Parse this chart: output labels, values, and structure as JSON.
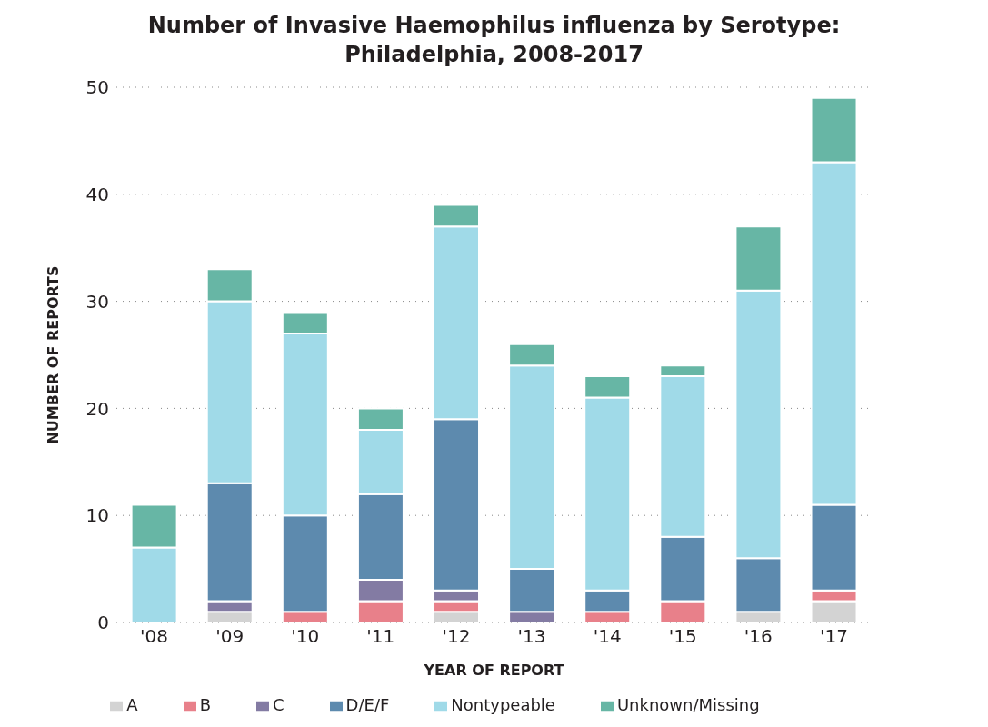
{
  "chart_data": {
    "type": "bar",
    "title": "Number of Invasive Haemophilus influenza by Serotype: Philadelphia, 2008-2017",
    "xlabel": "YEAR OF REPORT",
    "ylabel": "NUMBER OF REPORTS",
    "categories": [
      "'08",
      "'09",
      "'10",
      "'11",
      "'12",
      "'13",
      "'14",
      "'15",
      "'16",
      "'17"
    ],
    "series": [
      {
        "name": "A",
        "color": "#d3d3d3",
        "values": [
          0,
          1,
          0,
          0,
          1,
          0,
          0,
          0,
          1,
          2
        ]
      },
      {
        "name": "B",
        "color": "#e8808a",
        "values": [
          0,
          0,
          1,
          2,
          1,
          0,
          1,
          2,
          0,
          1
        ]
      },
      {
        "name": "C",
        "color": "#837ba3",
        "values": [
          0,
          1,
          0,
          2,
          1,
          1,
          0,
          0,
          0,
          0
        ]
      },
      {
        "name": "D/E/F",
        "color": "#5d8aae",
        "values": [
          0,
          11,
          9,
          8,
          16,
          4,
          2,
          6,
          5,
          8
        ]
      },
      {
        "name": "Nontypeable",
        "color": "#a0dae8",
        "values": [
          7,
          17,
          17,
          6,
          18,
          19,
          18,
          15,
          25,
          32
        ]
      },
      {
        "name": "Unknown/Missing",
        "color": "#67b6a5",
        "values": [
          4,
          3,
          2,
          2,
          2,
          2,
          2,
          1,
          6,
          6
        ]
      }
    ],
    "stacked": true,
    "ylim": [
      0,
      50
    ],
    "yticks": [
      0,
      10,
      20,
      30,
      40,
      50
    ],
    "grid": "y",
    "legend": "bottom"
  }
}
